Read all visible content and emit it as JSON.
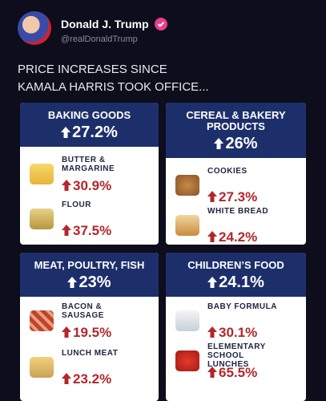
{
  "header": {
    "name": "Donald J. Trump",
    "handle": "@realDonaldTrump"
  },
  "post": {
    "lines": [
      "PRICE INCREASES SINCE",
      "KAMALA HARRIS TOOK OFFICE..."
    ]
  },
  "cards": [
    {
      "title": "BAKING GOODS",
      "change": "27.2%",
      "items": [
        {
          "label": "BUTTER & MARGARINE",
          "change": "30.9%"
        },
        {
          "label": "FLOUR",
          "change": "37.5%"
        }
      ]
    },
    {
      "title": "CEREAL & BAKERY PRODUCTS",
      "change": "26%",
      "items": [
        {
          "label": "COOKIES",
          "change": "27.3%"
        },
        {
          "label": "WHITE BREAD",
          "change": "24.2%"
        }
      ]
    },
    {
      "title": "MEAT, POULTRY, FISH",
      "change": "23%",
      "items": [
        {
          "label": "BACON & SAUSAGE",
          "change": "19.5%"
        },
        {
          "label": "LUNCH MEAT",
          "change": "23.2%"
        }
      ]
    },
    {
      "title": "CHILDREN’S FOOD",
      "change": "24.1%",
      "items": [
        {
          "label": "BABY FORMULA",
          "change": "30.1%"
        },
        {
          "label": "ELEMENTARY SCHOOL LUNCHES",
          "change": "65.5%"
        }
      ]
    }
  ]
}
